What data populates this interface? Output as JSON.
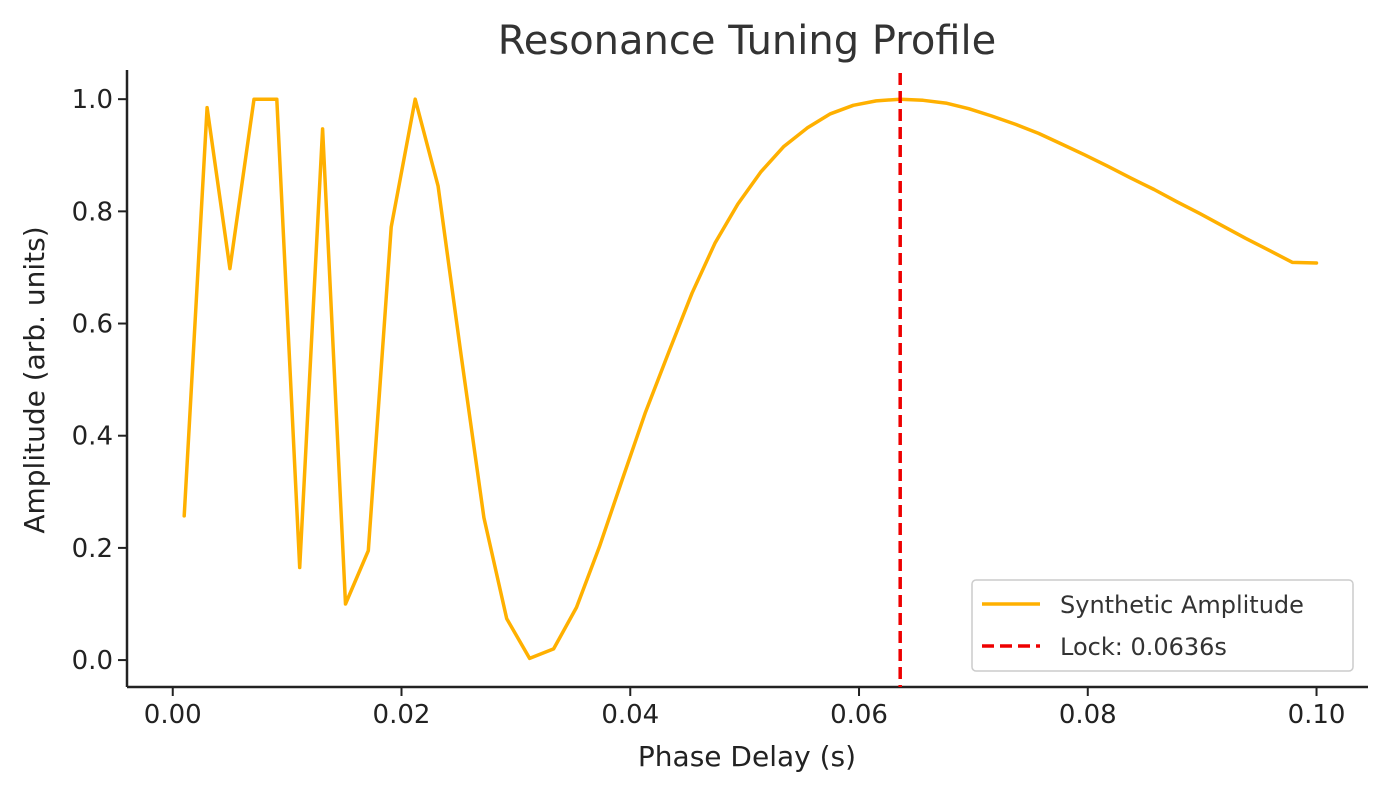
{
  "chart_data": {
    "type": "line",
    "title": "Resonance Tuning Profile",
    "xlabel": "Phase Delay (s)",
    "ylabel": "Amplitude (arb. units)",
    "xlim": [
      -0.004,
      0.1045
    ],
    "ylim": [
      -0.048,
      1.052
    ],
    "xticks": [
      0.0,
      0.02,
      0.04,
      0.06,
      0.08,
      0.1
    ],
    "xtick_labels": [
      "0.00",
      "0.02",
      "0.04",
      "0.06",
      "0.08",
      "0.10"
    ],
    "yticks": [
      0.0,
      0.2,
      0.4,
      0.6,
      0.8,
      1.0
    ],
    "ytick_labels": [
      "0.0",
      "0.2",
      "0.4",
      "0.6",
      "0.8",
      "1.0"
    ],
    "grid": false,
    "legend_position": "lower-right",
    "series": [
      {
        "name": "Synthetic Amplitude",
        "color": "#FFB000",
        "x": [
          0.001,
          0.003,
          0.005,
          0.0071,
          0.0091,
          0.0111,
          0.0131,
          0.0151,
          0.0171,
          0.0191,
          0.0212,
          0.0232,
          0.0252,
          0.0272,
          0.0292,
          0.0312,
          0.0333,
          0.0353,
          0.0373,
          0.0393,
          0.0413,
          0.0434,
          0.0454,
          0.0474,
          0.0494,
          0.0514,
          0.0534,
          0.0555,
          0.0575,
          0.0595,
          0.0615,
          0.0636,
          0.0656,
          0.0676,
          0.0696,
          0.0716,
          0.0737,
          0.0757,
          0.0777,
          0.0797,
          0.0817,
          0.0837,
          0.0858,
          0.0878,
          0.0898,
          0.0918,
          0.0938,
          0.0959,
          0.0979,
          0.1
        ],
        "y": [
          0.257,
          0.985,
          0.698,
          1.0,
          1.0,
          0.165,
          0.947,
          0.1,
          0.195,
          0.772,
          1.0,
          0.845,
          0.545,
          0.254,
          0.074,
          0.003,
          0.02,
          0.094,
          0.202,
          0.322,
          0.44,
          0.551,
          0.654,
          0.743,
          0.813,
          0.87,
          0.915,
          0.949,
          0.974,
          0.989,
          0.997,
          1.0,
          0.998,
          0.993,
          0.983,
          0.97,
          0.955,
          0.939,
          0.92,
          0.901,
          0.881,
          0.86,
          0.839,
          0.817,
          0.796,
          0.774,
          0.752,
          0.73,
          0.709,
          0.708
        ]
      }
    ],
    "annotations": [
      {
        "type": "vline",
        "x": 0.0636,
        "label": "Lock: 0.0636s",
        "color": "#EE0000",
        "style": "dashed"
      }
    ]
  }
}
